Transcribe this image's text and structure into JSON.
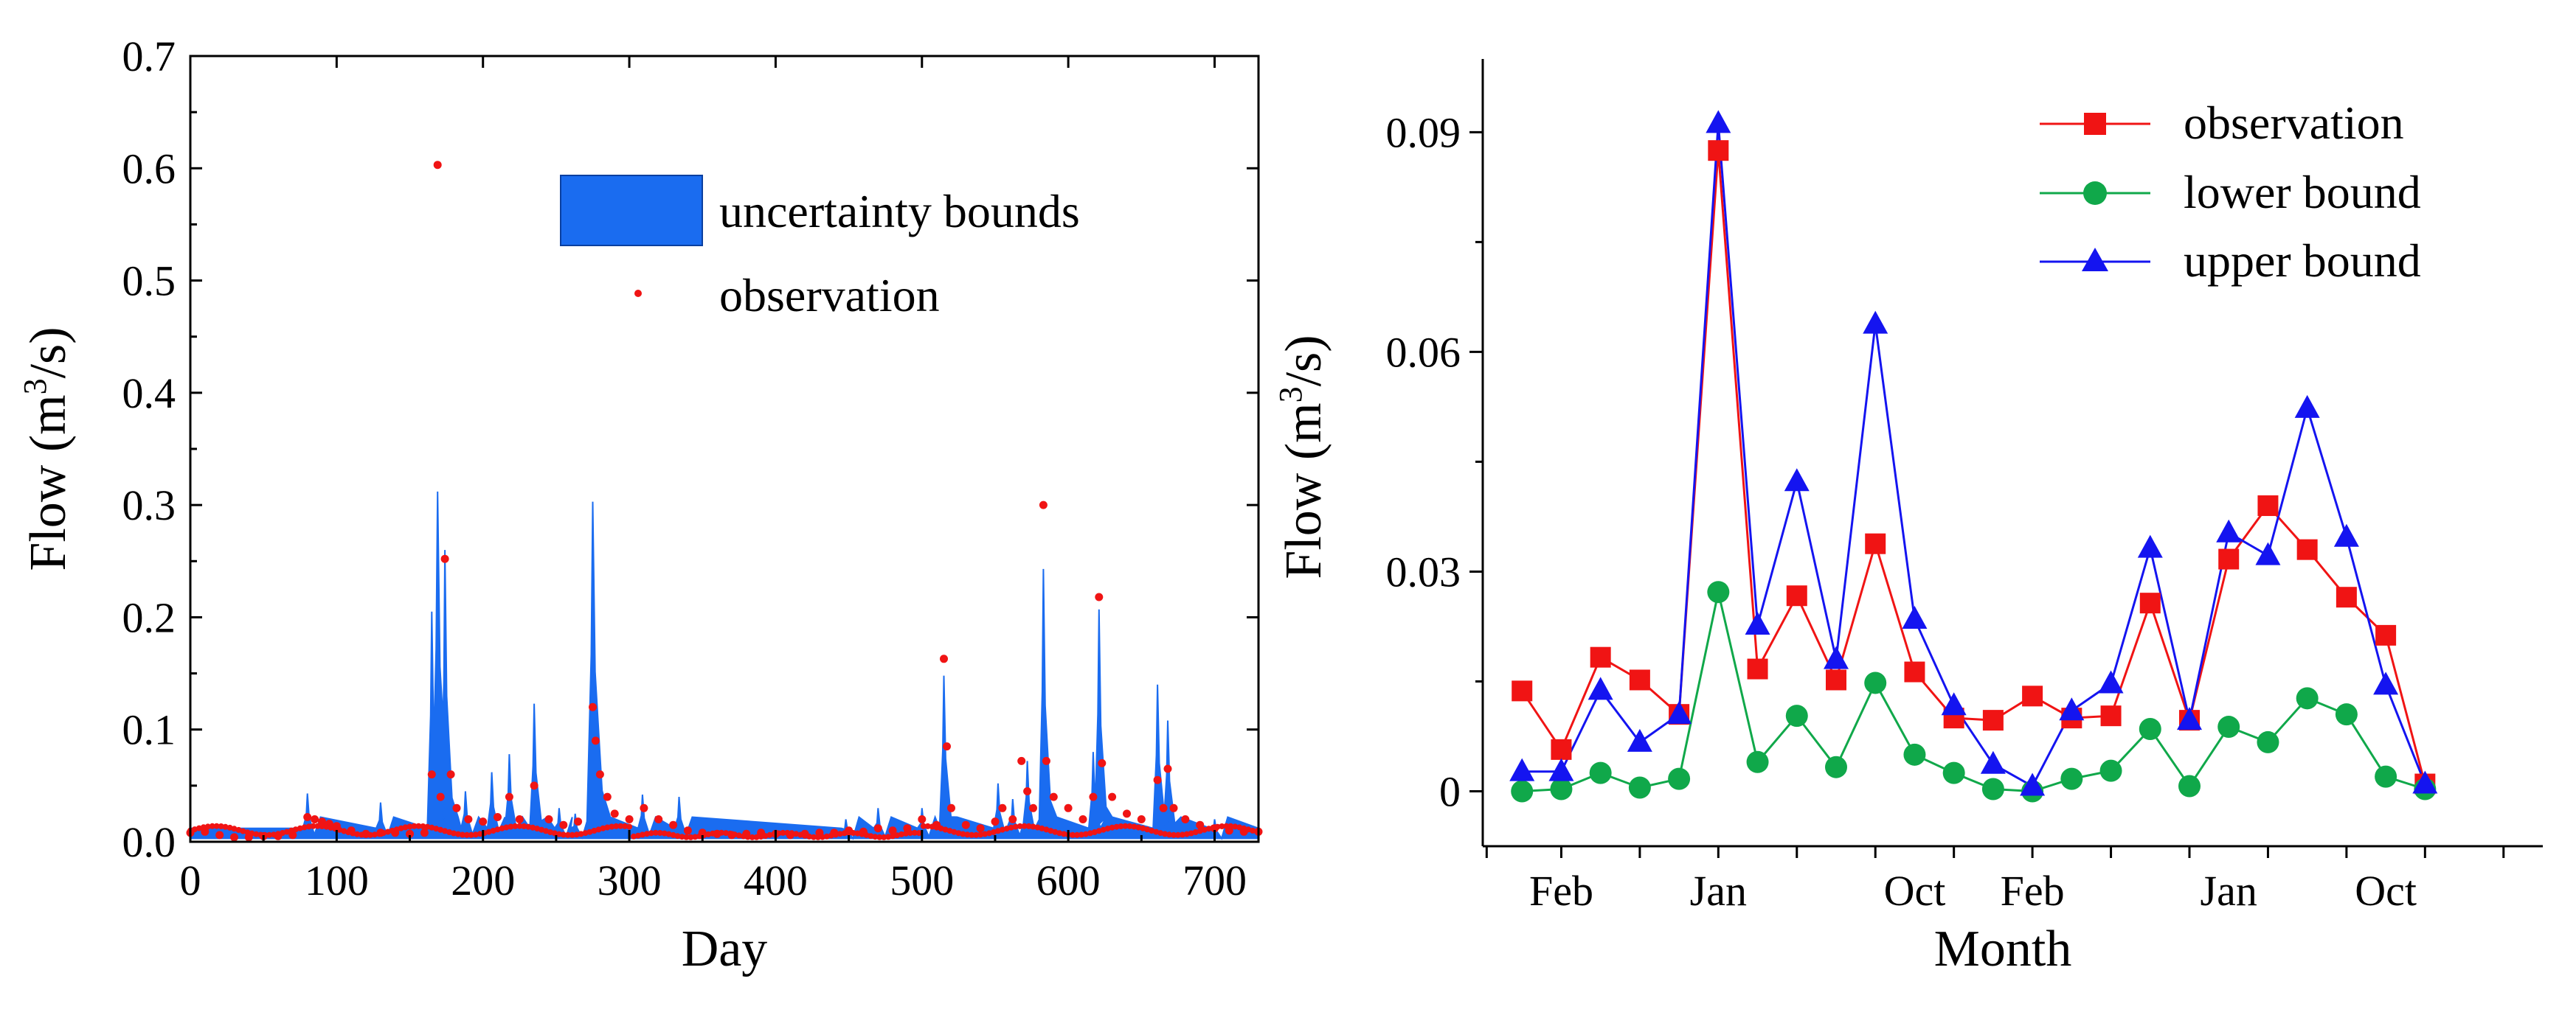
{
  "colors": {
    "band": "#1a6cf0",
    "observation": "#f01414",
    "lower": "#10a84a",
    "upper": "#1414f0"
  },
  "chart_data": [
    {
      "type": "area",
      "title": "",
      "xlabel": "Day",
      "ylabel_main": "Flow (m",
      "ylabel_sup": "3",
      "ylabel_tail": "/s)",
      "xlim": [
        0,
        730
      ],
      "ylim": [
        0,
        0.7
      ],
      "xticks": [
        "0",
        "100",
        "200",
        "300",
        "400",
        "500",
        "600",
        "700"
      ],
      "yticks": [
        "0.0",
        "0.1",
        "0.2",
        "0.3",
        "0.4",
        "0.5",
        "0.6",
        "0.7"
      ],
      "legend": [
        "uncertainty bounds",
        "observation"
      ],
      "baseline_upper": 0.012,
      "baseline_lower": 0.003,
      "baseline_obs": 0.008,
      "band_peaks": [
        {
          "x": 80,
          "y": 0.043,
          "w": 3
        },
        {
          "x": 130,
          "y": 0.035,
          "w": 3
        },
        {
          "x": 165,
          "y": 0.205,
          "w": 3
        },
        {
          "x": 169,
          "y": 0.312,
          "w": 4
        },
        {
          "x": 174,
          "y": 0.26,
          "w": 3
        },
        {
          "x": 188,
          "y": 0.045,
          "w": 3
        },
        {
          "x": 206,
          "y": 0.062,
          "w": 3
        },
        {
          "x": 218,
          "y": 0.078,
          "w": 3
        },
        {
          "x": 235,
          "y": 0.123,
          "w": 3
        },
        {
          "x": 252,
          "y": 0.03,
          "w": 3
        },
        {
          "x": 263,
          "y": 0.025,
          "w": 3
        },
        {
          "x": 275,
          "y": 0.303,
          "w": 4
        },
        {
          "x": 309,
          "y": 0.042,
          "w": 3
        },
        {
          "x": 334,
          "y": 0.04,
          "w": 3
        },
        {
          "x": 448,
          "y": 0.02,
          "w": 3
        },
        {
          "x": 470,
          "y": 0.03,
          "w": 3
        },
        {
          "x": 500,
          "y": 0.03,
          "w": 3
        },
        {
          "x": 515,
          "y": 0.148,
          "w": 3
        },
        {
          "x": 552,
          "y": 0.052,
          "w": 3
        },
        {
          "x": 562,
          "y": 0.038,
          "w": 3
        },
        {
          "x": 572,
          "y": 0.072,
          "w": 3
        },
        {
          "x": 583,
          "y": 0.243,
          "w": 3
        },
        {
          "x": 617,
          "y": 0.08,
          "w": 3
        },
        {
          "x": 621,
          "y": 0.207,
          "w": 3
        },
        {
          "x": 661,
          "y": 0.14,
          "w": 3
        },
        {
          "x": 668,
          "y": 0.108,
          "w": 3
        },
        {
          "x": 700,
          "y": 0.02,
          "w": 3
        }
      ],
      "observation_points": [
        [
          0,
          0.008
        ],
        [
          10,
          0.009
        ],
        [
          20,
          0.006
        ],
        [
          30,
          0.004
        ],
        [
          40,
          0.004
        ],
        [
          50,
          0.005
        ],
        [
          60,
          0.005
        ],
        [
          70,
          0.006
        ],
        [
          80,
          0.022
        ],
        [
          85,
          0.02
        ],
        [
          90,
          0.018
        ],
        [
          95,
          0.016
        ],
        [
          100,
          0.014
        ],
        [
          110,
          0.01
        ],
        [
          120,
          0.007
        ],
        [
          130,
          0.008
        ],
        [
          140,
          0.008
        ],
        [
          150,
          0.007
        ],
        [
          160,
          0.008
        ],
        [
          165,
          0.06
        ],
        [
          169,
          0.603
        ],
        [
          171,
          0.04
        ],
        [
          174,
          0.252
        ],
        [
          178,
          0.06
        ],
        [
          182,
          0.03
        ],
        [
          190,
          0.02
        ],
        [
          200,
          0.018
        ],
        [
          210,
          0.022
        ],
        [
          218,
          0.04
        ],
        [
          225,
          0.02
        ],
        [
          235,
          0.05
        ],
        [
          245,
          0.02
        ],
        [
          255,
          0.015
        ],
        [
          265,
          0.018
        ],
        [
          275,
          0.12
        ],
        [
          277,
          0.09
        ],
        [
          280,
          0.06
        ],
        [
          285,
          0.04
        ],
        [
          290,
          0.025
        ],
        [
          300,
          0.02
        ],
        [
          310,
          0.03
        ],
        [
          320,
          0.02
        ],
        [
          330,
          0.015
        ],
        [
          340,
          0.01
        ],
        [
          350,
          0.008
        ],
        [
          360,
          0.007
        ],
        [
          370,
          0.006
        ],
        [
          380,
          0.007
        ],
        [
          390,
          0.008
        ],
        [
          400,
          0.007
        ],
        [
          410,
          0.006
        ],
        [
          420,
          0.007
        ],
        [
          430,
          0.008
        ],
        [
          440,
          0.008
        ],
        [
          450,
          0.01
        ],
        [
          460,
          0.009
        ],
        [
          470,
          0.012
        ],
        [
          480,
          0.01
        ],
        [
          490,
          0.012
        ],
        [
          500,
          0.02
        ],
        [
          510,
          0.015
        ],
        [
          515,
          0.163
        ],
        [
          517,
          0.085
        ],
        [
          520,
          0.03
        ],
        [
          530,
          0.015
        ],
        [
          540,
          0.012
        ],
        [
          550,
          0.018
        ],
        [
          555,
          0.03
        ],
        [
          562,
          0.02
        ],
        [
          568,
          0.072
        ],
        [
          572,
          0.045
        ],
        [
          576,
          0.03
        ],
        [
          583,
          0.3
        ],
        [
          585,
          0.072
        ],
        [
          590,
          0.04
        ],
        [
          600,
          0.03
        ],
        [
          610,
          0.02
        ],
        [
          617,
          0.04
        ],
        [
          621,
          0.218
        ],
        [
          623,
          0.07
        ],
        [
          630,
          0.04
        ],
        [
          640,
          0.025
        ],
        [
          650,
          0.02
        ],
        [
          661,
          0.055
        ],
        [
          665,
          0.03
        ],
        [
          668,
          0.065
        ],
        [
          672,
          0.03
        ],
        [
          680,
          0.02
        ],
        [
          690,
          0.015
        ],
        [
          700,
          0.012
        ],
        [
          710,
          0.01
        ],
        [
          720,
          0.009
        ],
        [
          730,
          0.009
        ]
      ]
    },
    {
      "type": "line",
      "title": "",
      "xlabel": "Month",
      "ylabel_main": "Flow (m",
      "ylabel_sup": "3",
      "ylabel_tail": "/s)",
      "ylim": [
        -0.0075,
        0.1
      ],
      "xlim": [
        -1,
        26
      ],
      "ytick_values": [
        0,
        0.03,
        0.06,
        0.09
      ],
      "ytick_labels": [
        "0",
        "0.03",
        "0.06",
        "0.09"
      ],
      "xtick_positions": [
        1,
        7,
        13,
        19,
        23
      ],
      "xtick_labels": [
        "Feb",
        "Jan",
        "Oct",
        "Feb",
        "Jan",
        "Oct"
      ],
      "xtick_label_positions": [
        1,
        5,
        10,
        13,
        18,
        22
      ],
      "series": [
        {
          "name": "observation",
          "values": [
            0.0137,
            0.0057,
            0.0183,
            0.0152,
            0.0105,
            0.0875,
            0.0167,
            0.0267,
            0.0152,
            0.0338,
            0.0163,
            0.01,
            0.0097,
            0.013,
            0.01,
            0.0103,
            0.0257,
            0.0097,
            0.0317,
            0.039,
            0.033,
            0.0265,
            0.0213,
            0.001
          ]
        },
        {
          "name": "lower bound",
          "values": [
            0.0,
            0.0003,
            0.0025,
            0.0005,
            0.0017,
            0.0272,
            0.004,
            0.0103,
            0.0033,
            0.0148,
            0.005,
            0.0025,
            0.0003,
            0.0,
            0.0017,
            0.0028,
            0.0085,
            0.0007,
            0.0088,
            0.0067,
            0.0127,
            0.0105,
            0.002,
            0.0003
          ]
        },
        {
          "name": "upper bound",
          "values": [
            0.0027,
            0.0027,
            0.0138,
            0.0067,
            0.0105,
            0.0912,
            0.0227,
            0.0423,
            0.018,
            0.0638,
            0.0235,
            0.0117,
            0.0037,
            0.0007,
            0.011,
            0.0147,
            0.0332,
            0.0097,
            0.0353,
            0.0322,
            0.0523,
            0.0347,
            0.0145,
            0.001
          ]
        }
      ],
      "legend": [
        "observation",
        "lower bound",
        "upper bound"
      ]
    }
  ]
}
